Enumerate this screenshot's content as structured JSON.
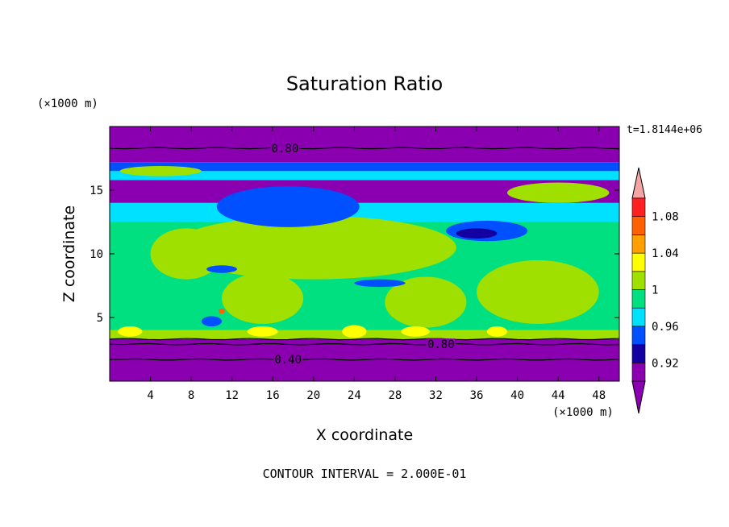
{
  "chart_data": {
    "type": "heatmap",
    "title": "Saturation Ratio",
    "xlabel": "X coordinate",
    "ylabel": "Z coordinate",
    "x_unit": "(×1000 m)",
    "y_unit": "(×1000 m)",
    "time_label": "t=1.8144e+06",
    "footer": "CONTOUR INTERVAL = 2.000E-01",
    "xlim": [
      0,
      50
    ],
    "ylim": [
      0,
      20
    ],
    "x_ticks": [
      4,
      8,
      12,
      16,
      20,
      24,
      28,
      32,
      36,
      40,
      44,
      48
    ],
    "y_ticks": [
      5,
      10,
      15
    ],
    "grid": false,
    "contour_labels": [
      {
        "text": "0.80",
        "x": 17.2,
        "y": 18.3
      },
      {
        "text": "0.80",
        "x": 32.5,
        "y": 2.9
      },
      {
        "text": "0.40",
        "x": 17.5,
        "y": 1.7
      }
    ],
    "colorbar": {
      "levels": [
        0.9,
        0.92,
        0.94,
        0.96,
        0.98,
        1.0,
        1.02,
        1.04,
        1.06,
        1.08,
        1.1
      ],
      "tick_labels": [
        "0.92",
        "0.96",
        "1",
        "1.04",
        "1.08"
      ],
      "tick_values": [
        0.92,
        0.96,
        1.0,
        1.04,
        1.08
      ],
      "colors": [
        "#8a00b0",
        "#1400a0",
        "#0050ff",
        "#00e0ff",
        "#00e080",
        "#a0e000",
        "#ffff00",
        "#ffa000",
        "#ff6000",
        "#ff2020"
      ],
      "over_color": "#f4a4a4",
      "under_color": "#8a00b0",
      "extend": "both"
    },
    "bands": [
      {
        "z0": 0.0,
        "z1": 3.3,
        "level": 0
      },
      {
        "z0": 3.3,
        "z1": 4.0,
        "level": 5
      },
      {
        "z0": 4.0,
        "z1": 12.5,
        "level": 4
      },
      {
        "z0": 12.5,
        "z1": 14.0,
        "level": 3
      },
      {
        "z0": 14.0,
        "z1": 15.8,
        "level": 0
      },
      {
        "z0": 15.8,
        "z1": 16.5,
        "level": 3
      },
      {
        "z0": 16.5,
        "z1": 17.2,
        "level": 2
      },
      {
        "z0": 17.2,
        "z1": 20.0,
        "level": 0
      }
    ],
    "regions": [
      {
        "level": 5,
        "x": 20,
        "y": 10.5,
        "rx": 14,
        "ry": 2.5
      },
      {
        "level": 5,
        "x": 7.5,
        "y": 10,
        "rx": 3.5,
        "ry": 2
      },
      {
        "level": 5,
        "x": 42,
        "y": 7,
        "rx": 6,
        "ry": 2.5
      },
      {
        "level": 5,
        "x": 31,
        "y": 6.2,
        "rx": 4,
        "ry": 2
      },
      {
        "level": 5,
        "x": 15,
        "y": 6.5,
        "rx": 4,
        "ry": 2
      },
      {
        "level": 5,
        "x": 44,
        "y": 14.8,
        "rx": 5,
        "ry": 0.8
      },
      {
        "level": 5,
        "x": 5,
        "y": 16.5,
        "rx": 4,
        "ry": 0.4
      },
      {
        "level": 1,
        "x": 17.5,
        "y": 13.5,
        "rx": 5,
        "ry": 1.2
      },
      {
        "level": 2,
        "x": 17.5,
        "y": 13.7,
        "rx": 7,
        "ry": 1.6
      },
      {
        "level": 2,
        "x": 37,
        "y": 11.8,
        "rx": 4,
        "ry": 0.8
      },
      {
        "level": 1,
        "x": 36,
        "y": 11.6,
        "rx": 2,
        "ry": 0.4
      },
      {
        "level": 2,
        "x": 11,
        "y": 8.8,
        "rx": 1.5,
        "ry": 0.3
      },
      {
        "level": 2,
        "x": 26.5,
        "y": 7.7,
        "rx": 2.5,
        "ry": 0.3
      },
      {
        "level": 6,
        "x": 2,
        "y": 3.9,
        "rx": 1.2,
        "ry": 0.4
      },
      {
        "level": 6,
        "x": 15,
        "y": 3.9,
        "rx": 1.5,
        "ry": 0.4
      },
      {
        "level": 6,
        "x": 24,
        "y": 3.9,
        "rx": 1.2,
        "ry": 0.5
      },
      {
        "level": 6,
        "x": 30,
        "y": 3.9,
        "rx": 1.4,
        "ry": 0.4
      },
      {
        "level": 6,
        "x": 38,
        "y": 3.9,
        "rx": 1,
        "ry": 0.4
      },
      {
        "level": 2,
        "x": 10,
        "y": 4.7,
        "rx": 1,
        "ry": 0.4
      },
      {
        "level": 8,
        "x": 11,
        "y": 5.5,
        "rx": 0.3,
        "ry": 0.2
      }
    ]
  }
}
